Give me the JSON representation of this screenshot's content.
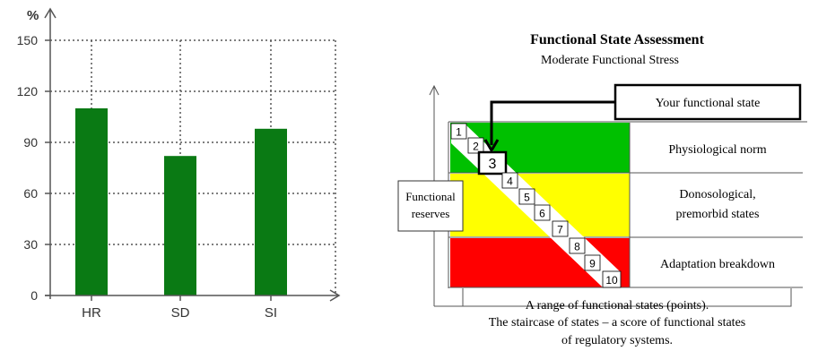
{
  "bar_chart": {
    "y_unit": "%",
    "bar_color": "#0a7a14"
  },
  "chart_data": [
    {
      "type": "bar",
      "title": "",
      "xlabel": "",
      "ylabel": "%",
      "categories": [
        "HR",
        "SD",
        "SI"
      ],
      "values": [
        110,
        82,
        98
      ],
      "ylim": [
        0,
        150
      ],
      "yticks": [
        0,
        30,
        60,
        90,
        120,
        150
      ],
      "grid": "dotted, at y ticks and bar centers"
    }
  ],
  "assessment": {
    "title": "Functional  State Assessment",
    "subtitle": "Moderate Functional Stress",
    "your_state_label": "Your functional state",
    "reserves_label": "Functional reserves",
    "zones": [
      {
        "label": "Physiological norm",
        "color": "#00c000"
      },
      {
        "label": "Donosological, premorbid states",
        "color": "#ffff00"
      },
      {
        "label": "Adaptation breakdown",
        "color": "#ff0000"
      }
    ],
    "steps": [
      "1",
      "2",
      "3",
      "4",
      "5",
      "6",
      "7",
      "8",
      "9",
      "10"
    ],
    "current_step": "3",
    "caption_lines": [
      "A range of functional states (points).",
      "The staircase of states – a score of functional states",
      "of regulatory systems."
    ]
  }
}
